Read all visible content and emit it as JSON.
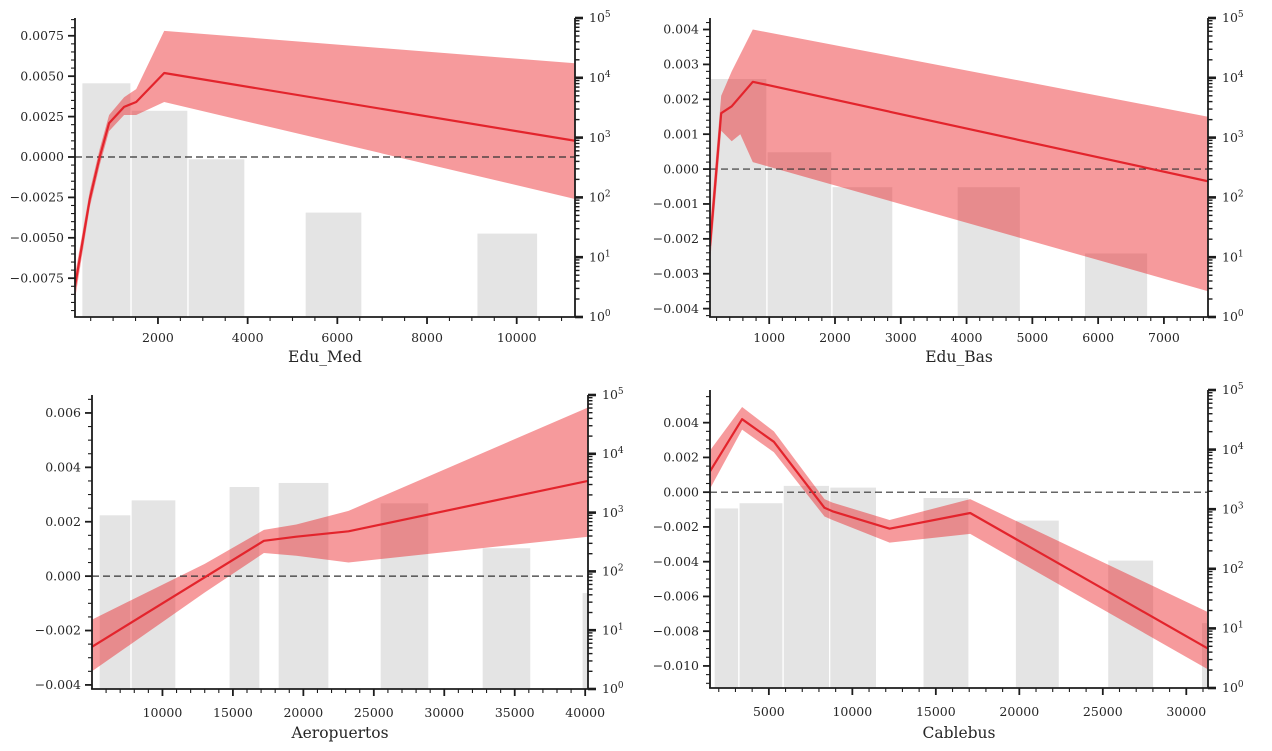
{
  "figure": {
    "background": "#ffffff",
    "colors": {
      "line": "#e3242c",
      "band": "#eb1e23",
      "band_alpha": 0.45,
      "bar": "#e4e4e4",
      "bar_edge": "#ffffff",
      "spine": "#1c1c1c",
      "zero_dash": "#333333",
      "text": "#262626"
    }
  },
  "chart_data": [
    {
      "type": "line",
      "subtype": "shap-dependence-with-histogram",
      "xlabel": "Edu_Med",
      "xlim": [
        150,
        11300
      ],
      "ylim": [
        -0.0099,
        0.0086
      ],
      "xticks": [
        2000,
        4000,
        6000,
        8000,
        10000
      ],
      "yticks": [
        0.0075,
        0.005,
        0.0025,
        0.0,
        -0.0025,
        -0.005,
        -0.0075
      ],
      "ytick_decimals": 4,
      "x_minor_step": 500,
      "y_minor_step": 0.0005,
      "right_axis": {
        "scale": "log",
        "exp_min": 0,
        "exp_max": 5,
        "label_base": "10"
      },
      "zero_line": 0.0,
      "line": [
        [
          150,
          -0.008
        ],
        [
          480,
          -0.0026
        ],
        [
          700,
          0.0
        ],
        [
          910,
          0.0021
        ],
        [
          1245,
          0.0031
        ],
        [
          1515,
          0.0034
        ],
        [
          2140,
          0.0052
        ],
        [
          11300,
          0.001
        ]
      ],
      "band_upper": [
        [
          150,
          -0.0073
        ],
        [
          480,
          -0.0021
        ],
        [
          700,
          0.0005
        ],
        [
          910,
          0.0026
        ],
        [
          1245,
          0.0037
        ],
        [
          1515,
          0.0042
        ],
        [
          2140,
          0.0078
        ],
        [
          11300,
          0.0058
        ]
      ],
      "band_lower": [
        [
          150,
          -0.0088
        ],
        [
          480,
          -0.0031
        ],
        [
          700,
          -0.0005
        ],
        [
          910,
          0.0016
        ],
        [
          1245,
          0.0026
        ],
        [
          1515,
          0.0026
        ],
        [
          2140,
          0.0034
        ],
        [
          11300,
          -0.0026
        ]
      ],
      "bars": [
        {
          "x0": 300,
          "x1": 1400,
          "top": 0.0046
        },
        {
          "x0": 1400,
          "x1": 2670,
          "top": 0.0029
        },
        {
          "x0": 2670,
          "x1": 3940,
          "top": -0.0001
        },
        {
          "x0": 5280,
          "x1": 6550,
          "top": -0.0034
        },
        {
          "x0": 9110,
          "x1": 10470,
          "top": -0.0047
        }
      ]
    },
    {
      "type": "line",
      "subtype": "shap-dependence-with-histogram",
      "xlabel": "Edu_Bas",
      "xlim": [
        100,
        7670
      ],
      "ylim": [
        -0.00424,
        0.00433
      ],
      "xticks": [
        1000,
        2000,
        3000,
        4000,
        5000,
        6000,
        7000
      ],
      "yticks": [
        0.004,
        0.003,
        0.002,
        0.001,
        0.0,
        -0.001,
        -0.002,
        -0.003,
        -0.004
      ],
      "ytick_decimals": 3,
      "x_minor_step": 200,
      "y_minor_step": 0.0002,
      "right_axis": {
        "scale": "log",
        "exp_min": 0,
        "exp_max": 5,
        "label_base": "10"
      },
      "zero_line": 0.0,
      "line": [
        [
          100,
          -0.0022
        ],
        [
          270,
          0.0016
        ],
        [
          430,
          0.0018
        ],
        [
          750,
          0.0025
        ],
        [
          7670,
          -0.00035
        ]
      ],
      "band_upper": [
        [
          100,
          -0.0017
        ],
        [
          270,
          0.0021
        ],
        [
          430,
          0.0028
        ],
        [
          750,
          0.004
        ],
        [
          7670,
          0.0015
        ]
      ],
      "band_lower": [
        [
          100,
          -0.0027
        ],
        [
          270,
          0.0011
        ],
        [
          430,
          0.0008
        ],
        [
          560,
          0.001
        ],
        [
          750,
          0.0002
        ],
        [
          7670,
          -0.0035
        ]
      ],
      "bars": [
        {
          "x0": 100,
          "x1": 966,
          "top": 0.0026
        },
        {
          "x0": 966,
          "x1": 1954,
          "top": 0.0005
        },
        {
          "x0": 1954,
          "x1": 2881,
          "top": -0.0005
        },
        {
          "x0": 3855,
          "x1": 4820,
          "top": -0.0005
        },
        {
          "x0": 5790,
          "x1": 6755,
          "top": -0.0024
        }
      ]
    },
    {
      "type": "line",
      "subtype": "shap-dependence-with-histogram",
      "xlabel": "Aeropuertos",
      "xlim": [
        5000,
        40200
      ],
      "ylim": [
        -0.00415,
        0.00666
      ],
      "xticks": [
        10000,
        15000,
        20000,
        25000,
        30000,
        35000,
        40000
      ],
      "yticks": [
        0.006,
        0.004,
        0.002,
        0.0,
        -0.002,
        -0.004
      ],
      "ytick_decimals": 3,
      "x_minor_step": 1000,
      "y_minor_step": 0.0005,
      "right_axis": {
        "scale": "log",
        "exp_min": 0,
        "exp_max": 5,
        "label_base": "10"
      },
      "zero_line": 0.0,
      "line": [
        [
          5000,
          -0.0026
        ],
        [
          17200,
          0.0013
        ],
        [
          19500,
          0.00145
        ],
        [
          23200,
          0.00165
        ],
        [
          40200,
          0.0035
        ]
      ],
      "band_upper": [
        [
          5000,
          -0.0016
        ],
        [
          13000,
          0.00045
        ],
        [
          17200,
          0.0017
        ],
        [
          19500,
          0.0019
        ],
        [
          23200,
          0.0024
        ],
        [
          40200,
          0.0062
        ]
      ],
      "band_lower": [
        [
          5000,
          -0.0035
        ],
        [
          13000,
          -0.0006
        ],
        [
          17200,
          0.00085
        ],
        [
          19500,
          0.00075
        ],
        [
          23200,
          0.0005
        ],
        [
          40200,
          0.00145
        ]
      ],
      "bars": [
        {
          "x0": 5500,
          "x1": 7770,
          "top": 0.00226
        },
        {
          "x0": 7770,
          "x1": 10960,
          "top": 0.00281
        },
        {
          "x0": 14720,
          "x1": 16920,
          "top": 0.0033
        },
        {
          "x0": 18200,
          "x1": 21820,
          "top": 0.00345
        },
        {
          "x0": 25440,
          "x1": 28910,
          "top": 0.0027
        },
        {
          "x0": 32680,
          "x1": 36150,
          "top": 0.00105
        },
        {
          "x0": 39770,
          "x1": 40200,
          "top": -0.0006
        }
      ]
    },
    {
      "type": "line",
      "subtype": "shap-dependence-with-histogram",
      "xlabel": "Cablebus",
      "xlim": [
        1475,
        31300
      ],
      "ylim": [
        -0.01127,
        0.00588
      ],
      "xticks": [
        5000,
        10000,
        15000,
        20000,
        25000,
        30000
      ],
      "yticks": [
        0.004,
        0.002,
        0.0,
        -0.002,
        -0.004,
        -0.006,
        -0.008,
        -0.01
      ],
      "ytick_decimals": 3,
      "x_minor_step": 1000,
      "y_minor_step": 0.0005,
      "right_axis": {
        "scale": "log",
        "exp_min": 0,
        "exp_max": 5,
        "label_base": "10"
      },
      "zero_line": 0.0,
      "line": [
        [
          1475,
          0.0012
        ],
        [
          3400,
          0.0042
        ],
        [
          5300,
          0.0029
        ],
        [
          8330,
          -0.0009
        ],
        [
          8810,
          -0.0011
        ],
        [
          12230,
          -0.0021
        ],
        [
          17060,
          -0.0012
        ],
        [
          31300,
          -0.009
        ]
      ],
      "band_upper": [
        [
          1475,
          0.0024
        ],
        [
          3400,
          0.0049
        ],
        [
          5300,
          0.0035
        ],
        [
          8330,
          -0.0004
        ],
        [
          8810,
          -0.0006
        ],
        [
          12230,
          -0.0016
        ],
        [
          17060,
          -0.0004
        ],
        [
          31300,
          -0.0069
        ]
      ],
      "band_lower": [
        [
          1475,
          0.0002
        ],
        [
          3400,
          0.0036
        ],
        [
          5300,
          0.0023
        ],
        [
          8330,
          -0.0014
        ],
        [
          8810,
          -0.0016
        ],
        [
          12230,
          -0.0029
        ],
        [
          17060,
          -0.0024
        ],
        [
          31300,
          -0.0102
        ]
      ],
      "bars": [
        {
          "x0": 1716,
          "x1": 3207,
          "top": -0.0009
        },
        {
          "x0": 3207,
          "x1": 5852,
          "top": -0.0006
        },
        {
          "x0": 5852,
          "x1": 8642,
          "top": 0.0004
        },
        {
          "x0": 8642,
          "x1": 11456,
          "top": 0.0003
        },
        {
          "x0": 14224,
          "x1": 16989,
          "top": -0.0003
        },
        {
          "x0": 19755,
          "x1": 22401,
          "top": -0.0016
        },
        {
          "x0": 25287,
          "x1": 28053,
          "top": -0.0039
        },
        {
          "x0": 30900,
          "x1": 31300,
          "top": -0.0075
        }
      ]
    }
  ]
}
